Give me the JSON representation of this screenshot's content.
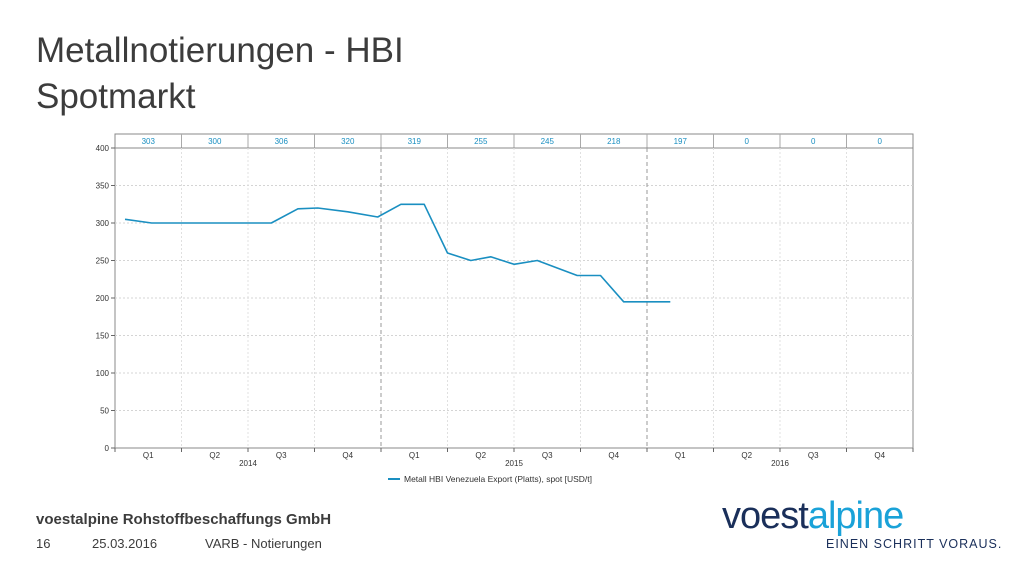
{
  "title": {
    "line1": "Metallnotierungen - HBI",
    "line2": "Spotmarkt"
  },
  "footer": {
    "company": "voestalpine Rohstoffbeschaffungs GmbH",
    "page_number": "16",
    "date": "25.03.2016",
    "subject": "VARB - Notierungen"
  },
  "logo": {
    "part1": "voest",
    "part2": "alpine",
    "tagline": "EINEN SCHRITT VORAUS."
  },
  "colors": {
    "series": "#1a8fc1",
    "header_text": "#1a8fc1",
    "logo_dark": "#1a2f5a",
    "logo_light": "#1aa2d8"
  },
  "chart_data": {
    "type": "line",
    "ylim": [
      0,
      400
    ],
    "yticks": [
      0,
      50,
      100,
      150,
      200,
      250,
      300,
      350,
      400
    ],
    "grid": true,
    "legend_position": "bottom",
    "quarter_labels": [
      "Q1",
      "Q2",
      "Q3",
      "Q4",
      "Q1",
      "Q2",
      "Q3",
      "Q4",
      "Q1",
      "Q2",
      "Q3",
      "Q4"
    ],
    "year_labels": [
      "2014",
      "2015",
      "2016"
    ],
    "quarter_averages": [
      "303",
      "300",
      "306",
      "320",
      "319",
      "255",
      "245",
      "218",
      "197",
      "0",
      "0",
      "0"
    ],
    "series": [
      {
        "name": "Metall HBI Venezuela Export (Platts), spot [USD/t]",
        "x": [
          0.15,
          0.55,
          1.0,
          1.5,
          2.0,
          2.35,
          2.75,
          3.05,
          3.5,
          3.95,
          4.3,
          4.65,
          5.0,
          5.35,
          5.65,
          6.0,
          6.35,
          6.65,
          6.95,
          7.3,
          7.65,
          8.0,
          8.35
        ],
        "values": [
          305,
          300,
          300,
          300,
          300,
          300,
          319,
          320,
          315,
          308,
          325,
          325,
          260,
          250,
          255,
          245,
          250,
          240,
          230,
          230,
          195,
          195,
          195
        ]
      }
    ]
  }
}
